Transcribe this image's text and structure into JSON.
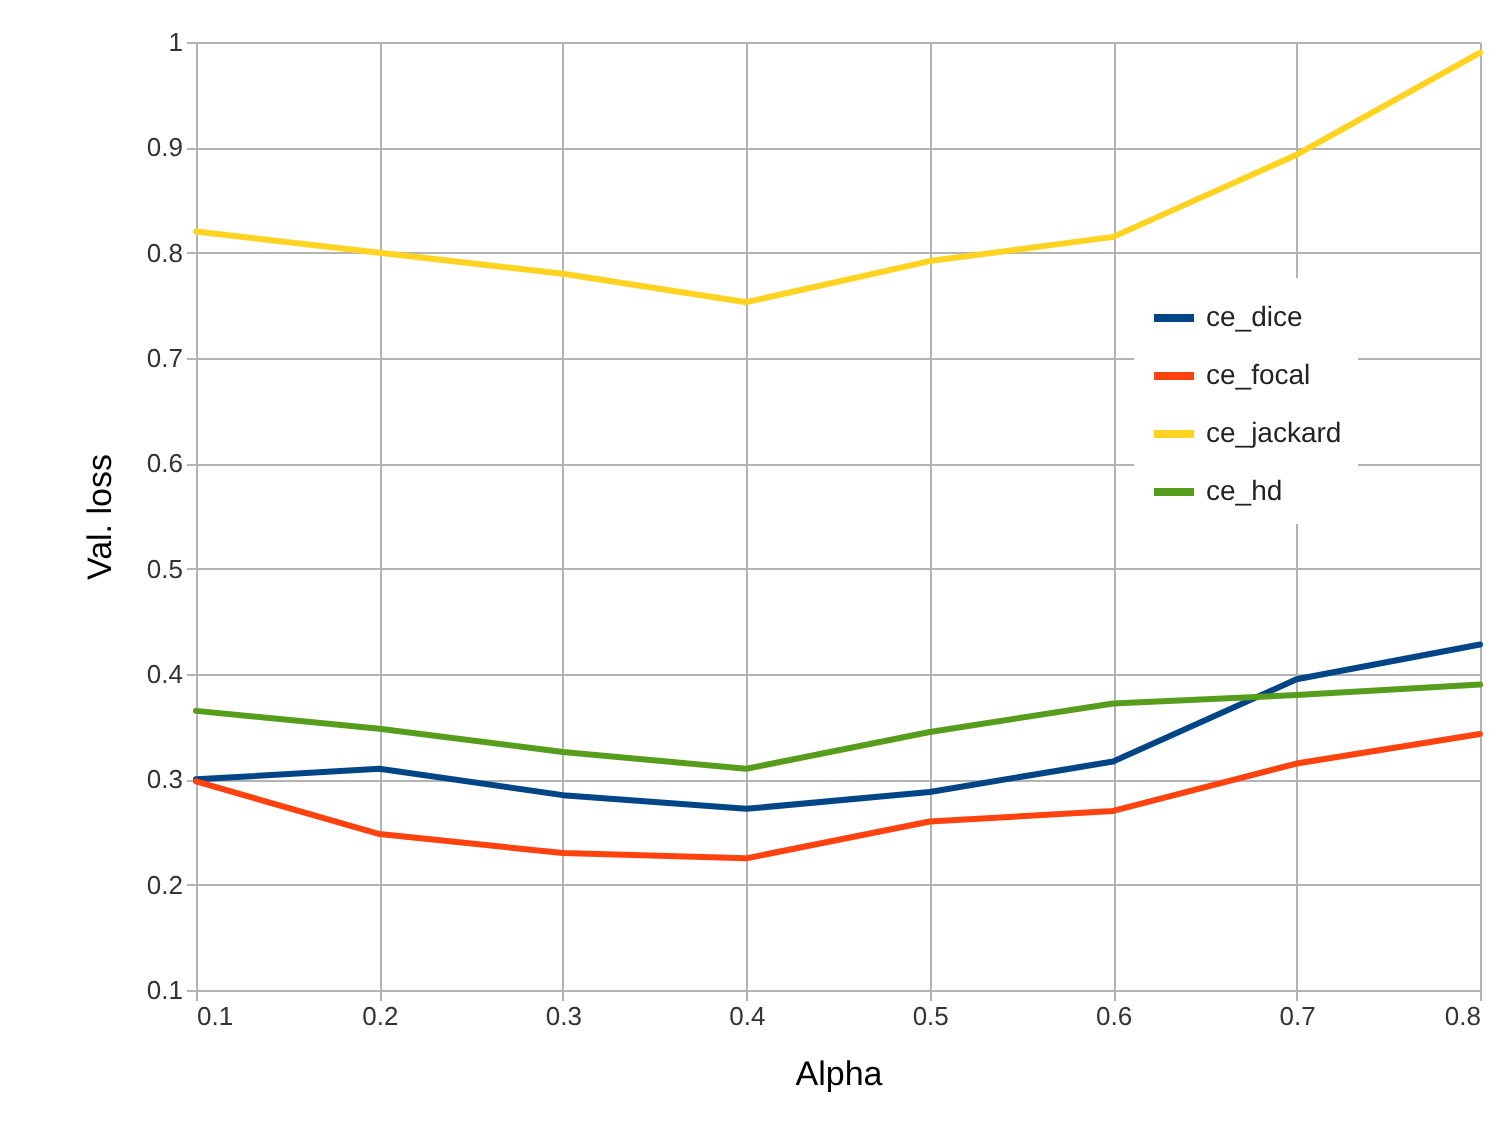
{
  "chart_data": {
    "type": "line",
    "xlabel": "Alpha",
    "ylabel": "Val. loss",
    "x": [
      0.1,
      0.2,
      0.3,
      0.4,
      0.5,
      0.6,
      0.7,
      0.8
    ],
    "series": [
      {
        "name": "ce_dice",
        "color": "#004586",
        "values": [
          0.3,
          0.31,
          0.285,
          0.272,
          0.288,
          0.317,
          0.395,
          0.428
        ]
      },
      {
        "name": "ce_focal",
        "color": "#ff420e",
        "values": [
          0.298,
          0.248,
          0.23,
          0.225,
          0.26,
          0.27,
          0.315,
          0.343
        ]
      },
      {
        "name": "ce_jackard",
        "color": "#ffd320",
        "values": [
          0.82,
          0.8,
          0.78,
          0.753,
          0.792,
          0.815,
          0.893,
          0.99
        ]
      },
      {
        "name": "ce_hd",
        "color": "#579d1c",
        "values": [
          0.365,
          0.348,
          0.326,
          0.31,
          0.345,
          0.372,
          0.38,
          0.39
        ]
      }
    ],
    "xlim": [
      0.1,
      0.8
    ],
    "xticks": [
      0.1,
      0.2,
      0.3,
      0.4,
      0.5,
      0.6,
      0.7,
      0.8
    ],
    "ylim": [
      0.1,
      1
    ],
    "yticks": [
      0.1,
      0.2,
      0.3,
      0.4,
      0.5,
      0.6,
      0.7,
      0.8,
      0.9,
      1
    ],
    "grid": true,
    "legend": "right",
    "line_style": "solid"
  }
}
